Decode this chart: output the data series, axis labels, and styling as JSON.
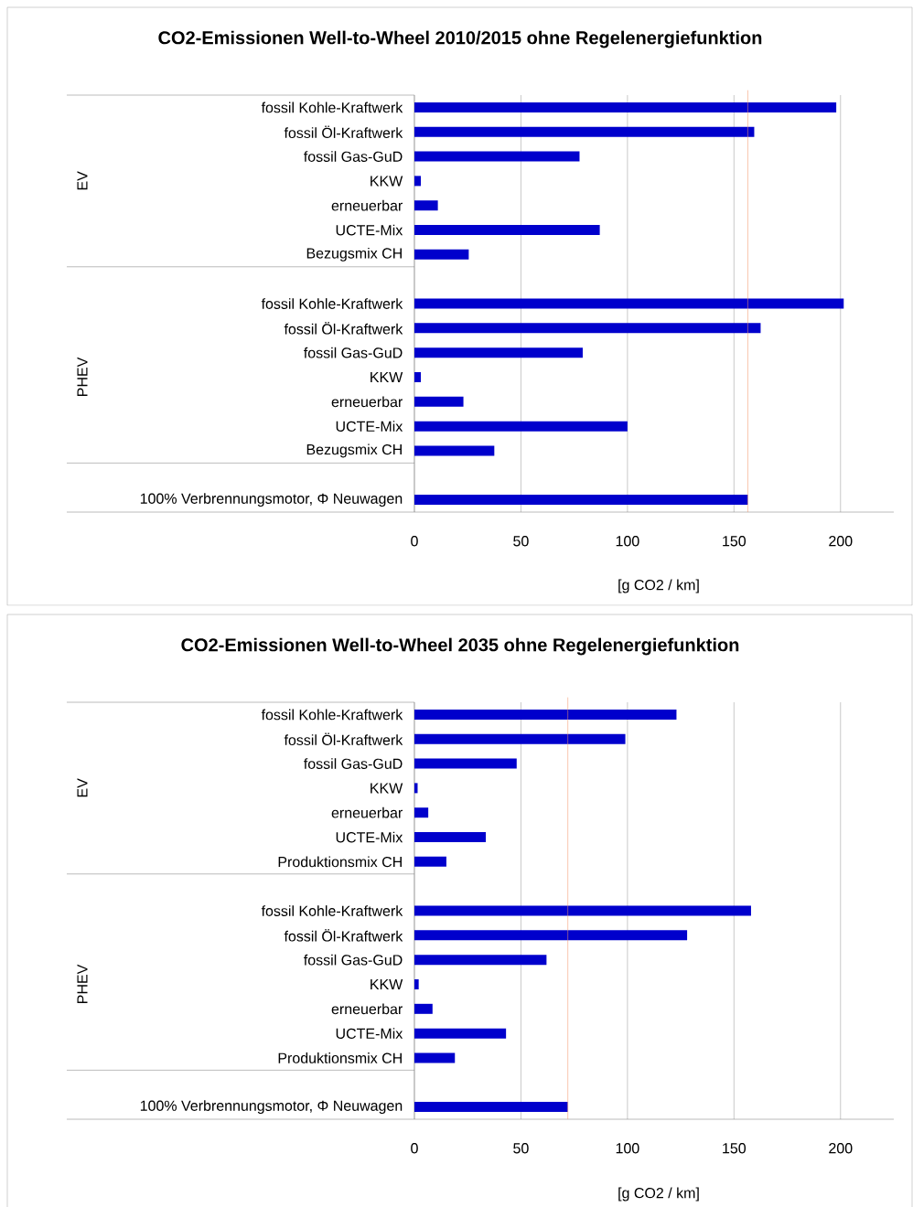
{
  "chart_data": [
    {
      "type": "bar",
      "orientation": "horizontal",
      "title": "CO2-Emissionen Well-to-Wheel 2010/2015 ohne Regelenergiefunktion",
      "xlabel": "[g CO2 / km]",
      "categories": [
        "fossil Kohle-Kraftwerk",
        "fossil Öl-Kraftwerk",
        "fossil Gas-GuD",
        "KKW",
        "erneuerbar",
        "UCTE-Mix",
        "Bezugsmix CH",
        null,
        "fossil Kohle-Kraftwerk",
        "fossil Öl-Kraftwerk",
        "fossil Gas-GuD",
        "KKW",
        "erneuerbar",
        "UCTE-Mix",
        "Bezugsmix CH",
        null,
        "100% Verbrennungsmotor, Φ Neuwagen"
      ],
      "values": [
        198,
        159.5,
        77.5,
        3,
        11,
        87,
        25.5,
        null,
        201.5,
        162.5,
        79,
        3,
        23,
        100,
        37.5,
        null,
        156.5
      ],
      "color": "#0000cc",
      "annotations": [
        "EV",
        "PHEV"
      ],
      "ref_lines": [
        {
          "axis": "x",
          "value": 156.5,
          "color": "#f4956a"
        }
      ],
      "xlim": [
        0,
        225
      ],
      "xticks": [
        0,
        50,
        100,
        150,
        200
      ],
      "grid": "x"
    },
    {
      "type": "bar",
      "orientation": "horizontal",
      "title": "CO2-Emissionen Well-to-Wheel 2035 ohne Regelenergiefunktion",
      "xlabel": "[g CO2 / km]",
      "categories": [
        "fossil Kohle-Kraftwerk",
        "fossil Öl-Kraftwerk",
        "fossil Gas-GuD",
        "KKW",
        "erneuerbar",
        "UCTE-Mix",
        "Produktionsmix CH",
        null,
        "fossil Kohle-Kraftwerk",
        "fossil Öl-Kraftwerk",
        "fossil Gas-GuD",
        "KKW",
        "erneuerbar",
        "UCTE-Mix",
        "Produktionsmix CH",
        null,
        "100% Verbrennungsmotor, Φ Neuwagen"
      ],
      "values": [
        123,
        99,
        48,
        1.5,
        6.5,
        33.5,
        15,
        null,
        158,
        128,
        62,
        2,
        8.5,
        43,
        19,
        null,
        72
      ],
      "color": "#0000cc",
      "annotations": [
        "EV",
        "PHEV"
      ],
      "ref_lines": [
        {
          "axis": "x",
          "value": 72,
          "color": "#f4956a"
        }
      ],
      "xlim": [
        0,
        225
      ],
      "xticks": [
        0,
        50,
        100,
        150,
        200
      ],
      "grid": "x"
    }
  ]
}
